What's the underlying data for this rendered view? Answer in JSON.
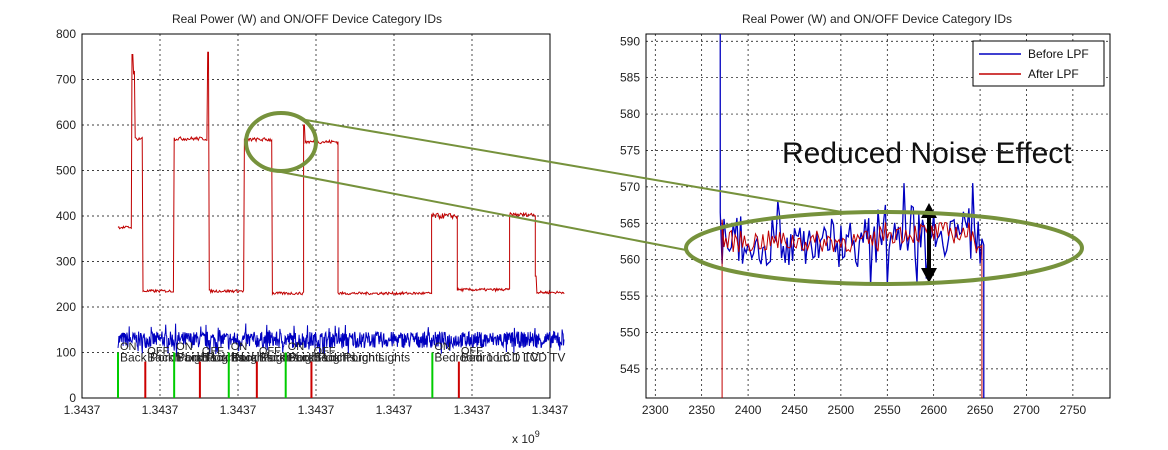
{
  "figure": {
    "annotation_text": "Reduced Noise Effect",
    "callout_color": "#76923c"
  },
  "chart_data": [
    {
      "type": "line",
      "title": "Real Power (W) and ON/OFF Device Category IDs",
      "xlabel": "",
      "ylabel": "",
      "x_tick_labels": [
        "1.3437",
        "1.3437",
        "1.3437",
        "1.3437",
        "1.3437",
        "1.3437",
        "1.3437"
      ],
      "x_exponent_label": "x 10",
      "x_exponent_sup": "9",
      "xlim": [
        0,
        6
      ],
      "ylim": [
        0,
        800
      ],
      "yticks": [
        0,
        100,
        200,
        300,
        400,
        500,
        600,
        700,
        800
      ],
      "grid": true,
      "series": [
        {
          "color": "#c00000",
          "segments": [
            {
              "x0": 0.0,
              "x1": 0.18,
              "level": 375,
              "noise": 3
            },
            {
              "x0": 0.18,
              "x1": 0.22,
              "level": 715,
              "noise": 5,
              "spike": 755
            },
            {
              "x0": 0.22,
              "x1": 0.32,
              "level": 570,
              "noise": 4
            },
            {
              "x0": 0.32,
              "x1": 0.72,
              "level": 235,
              "noise": 3
            },
            {
              "x0": 0.72,
              "x1": 1.15,
              "level": 570,
              "noise": 4
            },
            {
              "x0": 1.15,
              "x1": 1.62,
              "level": 235,
              "noise": 3,
              "spike": 760
            },
            {
              "x0": 1.62,
              "x1": 1.98,
              "level": 568,
              "noise": 4
            },
            {
              "x0": 1.98,
              "x1": 2.38,
              "level": 230,
              "noise": 3
            },
            {
              "x0": 2.38,
              "x1": 2.82,
              "level": 563,
              "noise": 4,
              "spike": 600
            },
            {
              "x0": 2.82,
              "x1": 4.02,
              "level": 230,
              "noise": 3
            },
            {
              "x0": 4.02,
              "x1": 4.35,
              "level": 400,
              "noise": 6
            },
            {
              "x0": 4.35,
              "x1": 5.02,
              "level": 238,
              "noise": 3
            },
            {
              "x0": 5.02,
              "x1": 5.35,
              "level": 403,
              "noise": 4
            },
            {
              "x0": 5.35,
              "x1": 5.72,
              "level": 232,
              "noise": 3,
              "spike": 268
            }
          ]
        },
        {
          "color": "#0000c0",
          "band": {
            "x0": 0.0,
            "x1": 5.72,
            "low": 115,
            "high": 160,
            "mean": 128
          }
        }
      ],
      "events": [
        {
          "x": 0.0,
          "color": "#00cc00",
          "height": 100,
          "state": "ON",
          "label": "Back Porch Lights"
        },
        {
          "x": 0.35,
          "color": "#cc0000",
          "height": 80,
          "state": "OFF",
          "label": "Back Porch Lights"
        },
        {
          "x": 0.72,
          "color": "#00cc00",
          "height": 100,
          "state": "ON",
          "label": "Back Porch Lights"
        },
        {
          "x": 1.05,
          "color": "#cc0000",
          "height": 80,
          "state": "OFF",
          "label": "Back Porch Lights"
        },
        {
          "x": 1.42,
          "color": "#00cc00",
          "height": 100,
          "state": "ON",
          "label": "Back Porch Lights"
        },
        {
          "x": 1.78,
          "color": "#cc0000",
          "height": 80,
          "state": "OFF",
          "label": "Back Porch Lights"
        },
        {
          "x": 2.15,
          "color": "#00cc00",
          "height": 100,
          "state": "ON",
          "label": "Back Porch Lights"
        },
        {
          "x": 2.48,
          "color": "#cc0000",
          "height": 80,
          "state": "OFF",
          "label": "Back Porch Lights"
        },
        {
          "x": 4.03,
          "color": "#00cc00",
          "height": 100,
          "state": "ON",
          "label": "Bedroom 1 LCD TV"
        },
        {
          "x": 4.37,
          "color": "#cc0000",
          "height": 80,
          "state": "OFF",
          "label": "Bedroom 1 LCD TV"
        }
      ]
    },
    {
      "type": "line",
      "title": "Real Power (W) and ON/OFF Device Category IDs",
      "xlabel": "",
      "ylabel": "",
      "xlim": [
        2290,
        2790
      ],
      "xticks": [
        2300,
        2350,
        2400,
        2450,
        2500,
        2550,
        2600,
        2650,
        2700,
        2750
      ],
      "ylim": [
        541,
        591
      ],
      "yticks": [
        545,
        550,
        555,
        560,
        565,
        570,
        575,
        580,
        585,
        590
      ],
      "grid": true,
      "legend_position": "top-right",
      "series": [
        {
          "name": "Before LPF",
          "color": "#0000c0",
          "start": 2370,
          "end": 2654,
          "level": 562.5,
          "noise": 5,
          "spikes": [
            [
              2370,
              591
            ],
            [
              2568,
              570.5
            ],
            [
              2642,
              570.5
            ]
          ]
        },
        {
          "name": "After LPF",
          "color": "#c00000",
          "start": 2372,
          "end": 2652,
          "level": 562.5,
          "noise": 1.5
        }
      ]
    }
  ]
}
